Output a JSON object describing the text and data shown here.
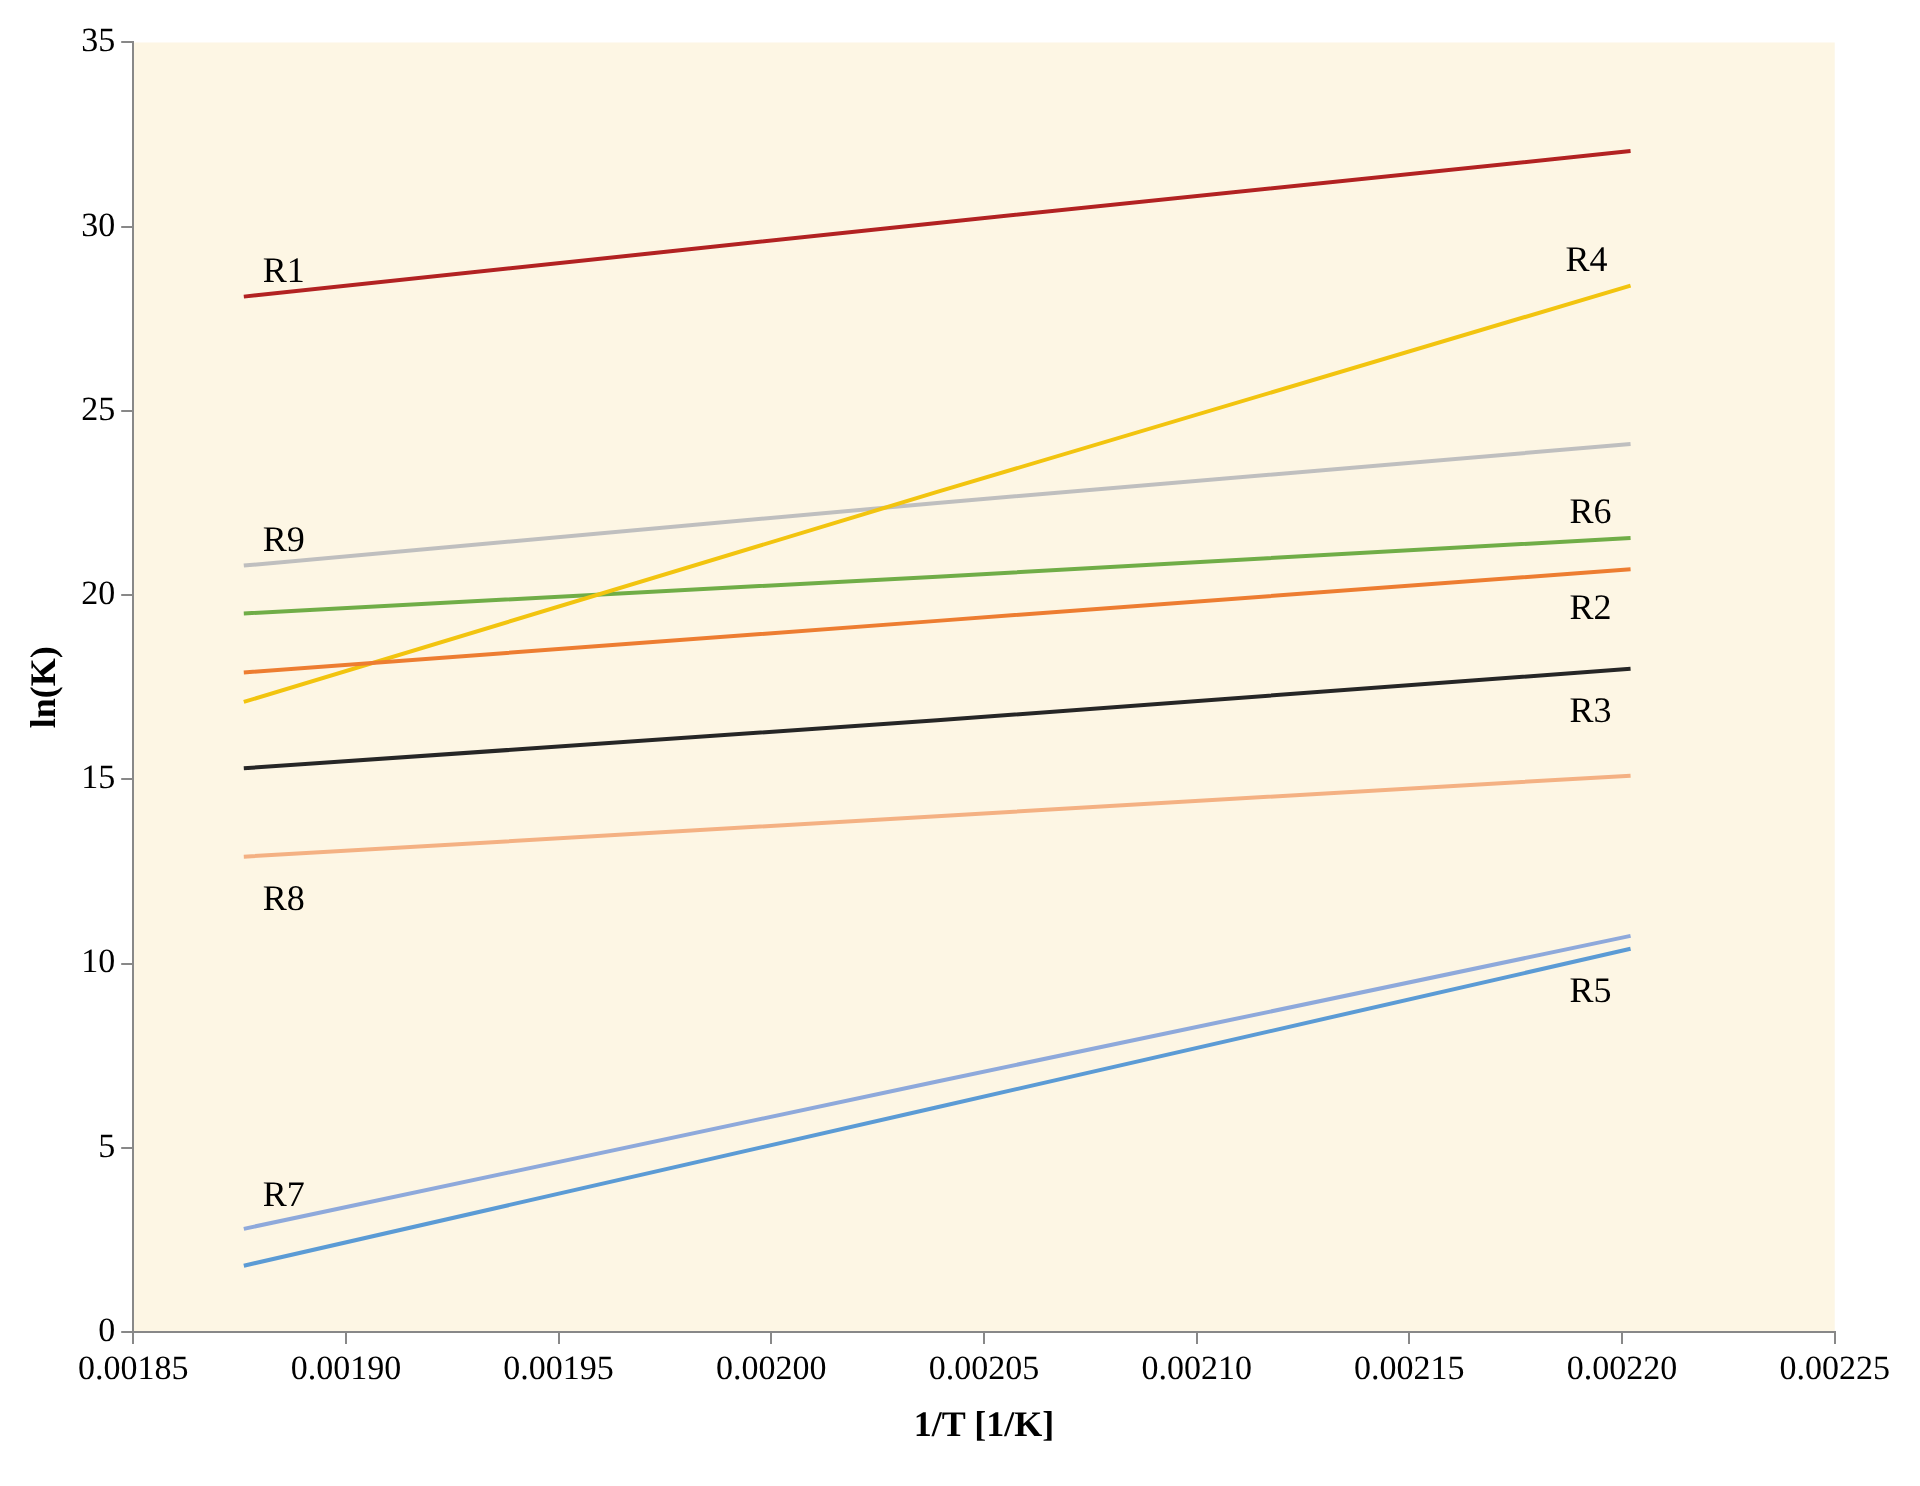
{
  "chart_data": {
    "type": "line",
    "xlabel": "1/T [1/K]",
    "ylabel": "ln(K)",
    "xlim": [
      0.00185,
      0.00225
    ],
    "ylim": [
      0,
      35
    ],
    "xticks": [
      {
        "value": 0.00185,
        "label": "0.00185"
      },
      {
        "value": 0.0019,
        "label": "0.00190"
      },
      {
        "value": 0.00195,
        "label": "0.00195"
      },
      {
        "value": 0.002,
        "label": "0.00200"
      },
      {
        "value": 0.00205,
        "label": "0.00205"
      },
      {
        "value": 0.0021,
        "label": "0.00210"
      },
      {
        "value": 0.00215,
        "label": "0.00215"
      },
      {
        "value": 0.0022,
        "label": "0.00220"
      },
      {
        "value": 0.00225,
        "label": "0.00225"
      }
    ],
    "yticks": [
      0,
      5,
      10,
      15,
      20,
      25,
      30,
      35
    ],
    "grid": false,
    "legend": false,
    "marker": "none",
    "line_style": "solid",
    "x": [
      0.001876,
      0.002039,
      0.002202
    ],
    "series": [
      {
        "name": "R1",
        "color": "#b22222",
        "values": [
          28.1,
          30.1,
          32.05
        ]
      },
      {
        "name": "R2",
        "color": "#ed7d31",
        "values": [
          17.9,
          19.3,
          20.7
        ]
      },
      {
        "name": "R3",
        "color": "#262626",
        "values": [
          15.3,
          16.6,
          18.0
        ]
      },
      {
        "name": "R4",
        "color": "#f2c40f",
        "values": [
          17.1,
          22.8,
          28.4
        ]
      },
      {
        "name": "R5",
        "color": "#5b9bd5",
        "values": [
          1.8,
          6.1,
          10.4
        ]
      },
      {
        "name": "R6",
        "color": "#70ad47",
        "values": [
          19.5,
          20.5,
          21.55
        ]
      },
      {
        "name": "R7",
        "color": "#8ea9db",
        "values": [
          2.8,
          6.8,
          10.75
        ]
      },
      {
        "name": "R8",
        "color": "#f4b183",
        "values": [
          12.9,
          14.0,
          15.1
        ]
      },
      {
        "name": "R9",
        "color": "#bfbfbf",
        "values": [
          20.8,
          22.5,
          24.1
        ]
      }
    ]
  }
}
